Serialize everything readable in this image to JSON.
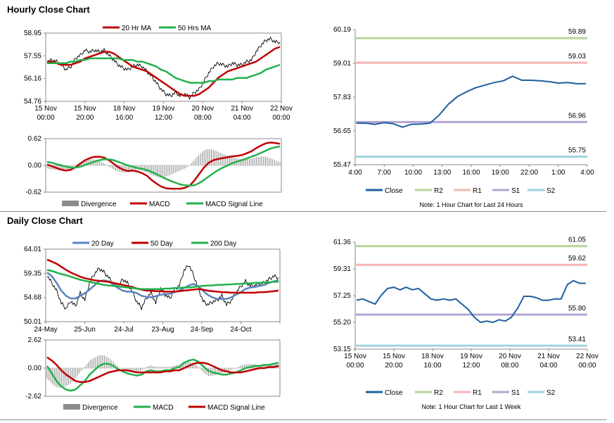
{
  "sections": {
    "hourly_title": "Hourly Close Chart",
    "daily_title": "Daily Close Chart"
  },
  "colors": {
    "red": "#c00000",
    "green": "#22b14c",
    "blue": "#1f5f9f",
    "black": "#000000",
    "gray": "#808080",
    "r2": "#b8d39c",
    "r1": "#f4b6b2",
    "s1": "#b4a4d4",
    "s2": "#9fd2df",
    "ma20d": "#5a84c0"
  },
  "chart_data": [
    {
      "id": "hourly_price",
      "type": "line",
      "title": "",
      "yticks": [
        "58.95",
        "57.55",
        "56.16",
        "54.76"
      ],
      "ylim": [
        54.76,
        58.95
      ],
      "xticks": [
        [
          "15 Nov",
          "00:00"
        ],
        [
          "15 Nov",
          "20:00"
        ],
        [
          "18 Nov",
          "16:00"
        ],
        [
          "19 Nov",
          "12:00"
        ],
        [
          "20 Nov",
          "08:00"
        ],
        [
          "21 Nov",
          "04:00"
        ],
        [
          "22 Nov",
          "00:00"
        ]
      ],
      "legend": [
        "20 Hr MA",
        "50 Hrs MA"
      ],
      "series": [
        {
          "name": "Close",
          "color": "black",
          "values": [
            57.2,
            57.3,
            57.2,
            57.0,
            56.7,
            56.9,
            57.4,
            57.6,
            57.9,
            57.8,
            57.9,
            57.8,
            57.9,
            57.6,
            57.3,
            57.0,
            56.8,
            56.7,
            56.9,
            57.0,
            56.9,
            56.6,
            56.3,
            55.9,
            55.5,
            55.2,
            55.1,
            55.3,
            55.1,
            55.2,
            55.0,
            55.3,
            55.5,
            56.0,
            56.5,
            56.9,
            57.1,
            57.0,
            56.9,
            57.1,
            57.0,
            57.0,
            57.2,
            57.3,
            57.8,
            58.2,
            58.5,
            58.6,
            58.4,
            58.4
          ]
        },
        {
          "name": "20 Hr MA",
          "color": "red",
          "values": [
            57.2,
            57.2,
            57.1,
            57.0,
            57.0,
            57.0,
            57.1,
            57.2,
            57.4,
            57.5,
            57.6,
            57.7,
            57.8,
            57.8,
            57.7,
            57.5,
            57.3,
            57.1,
            56.9,
            56.8,
            56.7,
            56.6,
            56.4,
            56.2,
            56.0,
            55.8,
            55.6,
            55.4,
            55.2,
            55.1,
            55.1,
            55.1,
            55.2,
            55.4,
            55.6,
            55.9,
            56.2,
            56.4,
            56.6,
            56.7,
            56.8,
            56.9,
            57.0,
            57.1,
            57.2,
            57.4,
            57.6,
            57.8,
            58.0,
            58.1
          ]
        },
        {
          "name": "50 Hrs MA",
          "color": "green",
          "values": [
            57.1,
            57.1,
            57.1,
            57.1,
            57.1,
            57.2,
            57.2,
            57.3,
            57.3,
            57.4,
            57.4,
            57.4,
            57.4,
            57.4,
            57.4,
            57.4,
            57.3,
            57.3,
            57.3,
            57.2,
            57.2,
            57.1,
            57.0,
            56.9,
            56.7,
            56.6,
            56.4,
            56.2,
            56.1,
            56.0,
            55.9,
            55.9,
            55.9,
            55.9,
            56.0,
            56.0,
            56.1,
            56.1,
            56.1,
            56.1,
            56.2,
            56.2,
            56.2,
            56.3,
            56.4,
            56.5,
            56.7,
            56.8,
            56.9,
            57.0
          ]
        }
      ]
    },
    {
      "id": "hourly_macd",
      "type": "line",
      "yticks": [
        "0.62",
        "0.00",
        "-0.62"
      ],
      "ylim": [
        -0.62,
        0.62
      ],
      "legend": [
        "Divergence",
        "MACD",
        "MACD Signal Line"
      ],
      "series": [
        {
          "name": "MACD",
          "color": "red",
          "values": [
            0.02,
            -0.02,
            -0.06,
            -0.1,
            -0.12,
            -0.1,
            -0.04,
            0.04,
            0.12,
            0.17,
            0.2,
            0.2,
            0.18,
            0.12,
            0.04,
            -0.04,
            -0.1,
            -0.13,
            -0.12,
            -0.14,
            -0.18,
            -0.24,
            -0.34,
            -0.42,
            -0.49,
            -0.53,
            -0.54,
            -0.54,
            -0.54,
            -0.52,
            -0.47,
            -0.35,
            -0.2,
            -0.05,
            0.06,
            0.12,
            0.15,
            0.17,
            0.19,
            0.21,
            0.22,
            0.24,
            0.28,
            0.33,
            0.4,
            0.46,
            0.51,
            0.53,
            0.52,
            0.5
          ]
        },
        {
          "name": "MACD Signal Line",
          "color": "green",
          "values": [
            0.08,
            0.06,
            0.03,
            0.0,
            -0.03,
            -0.05,
            -0.05,
            -0.03,
            0.01,
            0.05,
            0.09,
            0.12,
            0.14,
            0.14,
            0.12,
            0.08,
            0.04,
            0.0,
            -0.03,
            -0.06,
            -0.08,
            -0.11,
            -0.15,
            -0.2,
            -0.26,
            -0.31,
            -0.36,
            -0.4,
            -0.44,
            -0.46,
            -0.47,
            -0.46,
            -0.41,
            -0.34,
            -0.26,
            -0.18,
            -0.11,
            -0.05,
            0.0,
            0.05,
            0.09,
            0.12,
            0.16,
            0.2,
            0.24,
            0.29,
            0.34,
            0.39,
            0.42,
            0.44
          ]
        }
      ]
    },
    {
      "id": "hourly_pivots",
      "type": "line",
      "yticks": [
        "60.19",
        "59.01",
        "57.83",
        "56.65",
        "55.47"
      ],
      "ylim": [
        55.47,
        60.19
      ],
      "xticks": [
        "4:00",
        "7:00",
        "10:00",
        "13:00",
        "16:00",
        "19:00",
        "22:00",
        "1:00",
        "4:00"
      ],
      "levels": [
        {
          "name": "R2",
          "value": 59.89,
          "label": "59.89",
          "color": "r2"
        },
        {
          "name": "R1",
          "value": 59.03,
          "label": "59.03",
          "color": "r1"
        },
        {
          "name": "S1",
          "value": 56.96,
          "label": "56.96",
          "color": "s1"
        },
        {
          "name": "S2",
          "value": 55.75,
          "label": "55.75",
          "color": "s2"
        }
      ],
      "close": [
        56.92,
        56.92,
        56.88,
        56.94,
        56.9,
        56.78,
        56.88,
        56.89,
        56.92,
        57.2,
        57.58,
        57.85,
        58.02,
        58.16,
        58.25,
        58.34,
        58.4,
        58.56,
        58.42,
        58.42,
        58.4,
        58.37,
        58.32,
        58.34,
        58.3,
        58.3
      ],
      "legend": [
        "Close",
        "R2",
        "R1",
        "S1",
        "S2"
      ],
      "note": "Note: 1 Hour Chart for Last 24 Hours"
    },
    {
      "id": "daily_price",
      "type": "line",
      "yticks": [
        "64.01",
        "59.35",
        "54.68",
        "50.01"
      ],
      "ylim": [
        50.01,
        64.01
      ],
      "xticks": [
        "24-May",
        "25-Jun",
        "24-Jul",
        "23-Aug",
        "24-Sep",
        "24-Oct"
      ],
      "legend": [
        "20 Day",
        "50 Day",
        "200 Day"
      ],
      "series": [
        {
          "name": "Close",
          "color": "black",
          "values": [
            58.9,
            57.5,
            56.0,
            53.6,
            52.5,
            54.0,
            53.0,
            55.5,
            54.2,
            57.6,
            59.2,
            60.3,
            59.6,
            58.6,
            57.2,
            56.8,
            58.2,
            57.5,
            55.8,
            53.8,
            52.7,
            54.5,
            55.6,
            53.6,
            56.4,
            55.2,
            54.5,
            56.2,
            57.0,
            59.9,
            61.0,
            59.0,
            56.5,
            54.0,
            53.3,
            53.8,
            54.2,
            55.0,
            53.3,
            54.1,
            55.6,
            56.8,
            57.8,
            56.9,
            57.0,
            57.3,
            57.5,
            58.2,
            58.8,
            58.5
          ]
        },
        {
          "name": "20 Day",
          "color": "ma20d",
          "values": [
            59.5,
            58.8,
            57.5,
            56.0,
            55.0,
            54.5,
            54.5,
            55.0,
            55.5,
            56.2,
            57.0,
            57.8,
            58.0,
            57.8,
            57.2,
            56.5,
            56.0,
            55.8,
            55.8,
            55.5,
            55.0,
            54.8,
            54.7,
            54.9,
            55.2,
            55.3,
            55.4,
            55.7,
            56.0,
            56.5,
            57.0,
            57.3,
            56.8,
            56.0,
            55.2,
            54.7,
            54.4,
            54.4,
            54.4,
            54.7,
            55.2,
            55.7,
            56.3,
            56.6,
            56.7,
            56.9,
            57.1,
            57.5,
            57.8,
            58.0
          ]
        },
        {
          "name": "50 Day",
          "color": "red",
          "values": [
            62.0,
            61.6,
            61.2,
            60.6,
            60.0,
            59.5,
            59.1,
            58.7,
            58.4,
            58.2,
            58.0,
            57.9,
            57.8,
            57.7,
            57.5,
            57.3,
            57.1,
            56.9,
            56.7,
            56.4,
            56.2,
            56.0,
            56.0,
            55.9,
            55.9,
            55.8,
            55.8,
            55.8,
            55.9,
            56.0,
            56.1,
            56.2,
            56.3,
            56.2,
            56.0,
            55.9,
            55.8,
            55.7,
            55.7,
            55.6,
            55.6,
            55.6,
            55.6,
            55.6,
            55.6,
            55.7,
            55.7,
            55.8,
            55.9,
            56.0
          ]
        },
        {
          "name": "200 Day",
          "color": "green",
          "values": [
            60.0,
            59.8,
            59.5,
            59.2,
            59.0,
            58.7,
            58.4,
            58.1,
            57.9,
            57.7,
            57.5,
            57.3,
            57.1,
            57.0,
            56.9,
            56.8,
            56.7,
            56.6,
            56.5,
            56.4,
            56.3,
            56.3,
            56.3,
            56.3,
            56.3,
            56.4,
            56.4,
            56.5,
            56.5,
            56.6,
            56.6,
            56.7,
            56.8,
            56.9,
            57.0,
            57.0,
            57.1,
            57.1,
            57.2,
            57.2,
            57.3,
            57.3,
            57.4,
            57.4,
            57.5,
            57.5,
            57.6,
            57.6,
            57.7,
            57.7
          ]
        }
      ]
    },
    {
      "id": "daily_macd",
      "type": "line",
      "yticks": [
        "2.62",
        "0.00",
        "-2.62"
      ],
      "ylim": [
        -2.62,
        2.62
      ],
      "legend": [
        "Divergence",
        "MACD",
        "MACD Signal Line"
      ],
      "series": [
        {
          "name": "MACD",
          "color": "green",
          "values": [
            0.2,
            -0.5,
            -1.2,
            -1.7,
            -2.0,
            -2.1,
            -2.0,
            -1.6,
            -1.2,
            -0.6,
            -0.2,
            0.2,
            0.4,
            0.4,
            0.2,
            -0.1,
            -0.3,
            -0.5,
            -0.6,
            -0.7,
            -0.6,
            -0.3,
            -0.2,
            -0.3,
            -0.3,
            -0.2,
            -0.2,
            0.0,
            0.1,
            0.5,
            0.7,
            0.8,
            0.6,
            0.2,
            -0.2,
            -0.4,
            -0.5,
            -0.6,
            -0.6,
            -0.5,
            -0.4,
            -0.2,
            0.0,
            0.1,
            0.2,
            0.2,
            0.3,
            0.3,
            0.4,
            0.5
          ]
        },
        {
          "name": "MACD Signal Line",
          "color": "red",
          "values": [
            1.0,
            0.7,
            0.3,
            -0.2,
            -0.6,
            -0.9,
            -1.2,
            -1.3,
            -1.3,
            -1.2,
            -1.0,
            -0.8,
            -0.6,
            -0.4,
            -0.3,
            -0.2,
            -0.2,
            -0.2,
            -0.3,
            -0.4,
            -0.4,
            -0.4,
            -0.4,
            -0.4,
            -0.4,
            -0.3,
            -0.3,
            -0.2,
            -0.2,
            0.0,
            0.2,
            0.4,
            0.5,
            0.5,
            0.4,
            0.2,
            0.0,
            -0.2,
            -0.3,
            -0.4,
            -0.4,
            -0.4,
            -0.3,
            -0.2,
            -0.1,
            0.0,
            0.0,
            0.1,
            0.1,
            0.2
          ]
        }
      ]
    },
    {
      "id": "daily_pivots",
      "type": "line",
      "yticks": [
        "61.36",
        "59.31",
        "57.25",
        "55.20",
        "53.15"
      ],
      "ylim": [
        53.15,
        61.36
      ],
      "xticks": [
        [
          "15 Nov",
          "00:00"
        ],
        [
          "15 Nov",
          "20:00"
        ],
        [
          "18 Nov",
          "16:00"
        ],
        [
          "19 Nov",
          "12:00"
        ],
        [
          "20 Nov",
          "08:00"
        ],
        [
          "21 Nov",
          "04:00"
        ],
        [
          "22 Nov",
          "00:00"
        ]
      ],
      "levels": [
        {
          "name": "R2",
          "value": 61.05,
          "label": "61.05",
          "color": "r2"
        },
        {
          "name": "R1",
          "value": 59.62,
          "label": "59.62",
          "color": "r1"
        },
        {
          "name": "S1",
          "value": 55.8,
          "label": "55.80",
          "color": "s1"
        },
        {
          "name": "S2",
          "value": 53.41,
          "label": "53.41",
          "color": "s2"
        }
      ],
      "close": [
        56.9,
        57.0,
        56.8,
        56.6,
        57.3,
        57.8,
        57.9,
        57.7,
        57.9,
        57.7,
        57.8,
        57.4,
        57.0,
        56.9,
        57.0,
        56.9,
        57.0,
        56.6,
        56.2,
        55.6,
        55.2,
        55.3,
        55.2,
        55.4,
        55.3,
        55.6,
        56.3,
        57.2,
        57.2,
        57.1,
        56.9,
        56.9,
        57.0,
        57.0,
        58.1,
        58.4,
        58.2,
        58.2
      ],
      "legend": [
        "Close",
        "R2",
        "R1",
        "S1",
        "S2"
      ],
      "note": "Note: 1 Hour Chart for Last 1 Week"
    }
  ]
}
